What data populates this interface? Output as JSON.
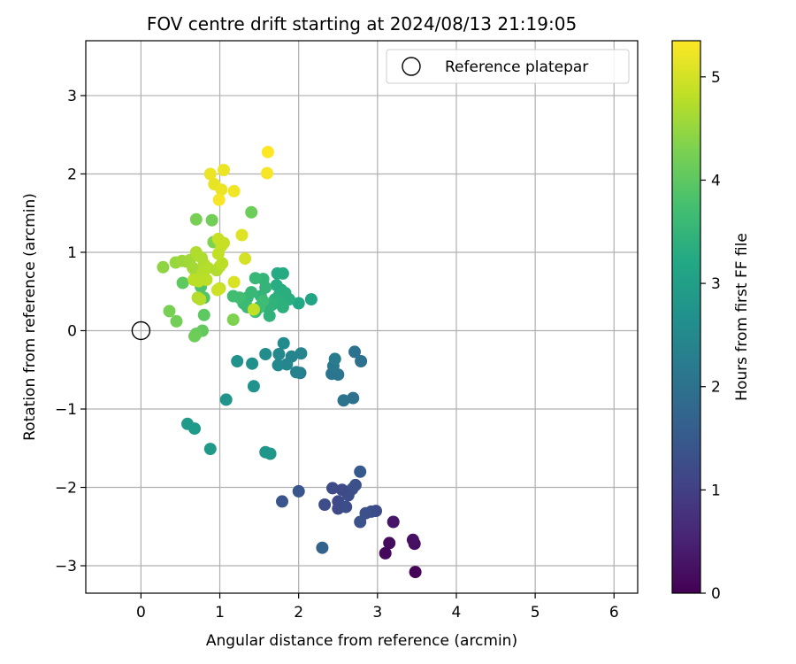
{
  "chart_data": {
    "type": "scatter",
    "title": "FOV centre drift starting at 2024/08/13 21:19:05",
    "xlabel": "Angular distance from reference (arcmin)",
    "ylabel": "Rotation from reference (arcmin)",
    "xlim": [
      -0.7,
      6.3
    ],
    "ylim": [
      -3.35,
      3.7
    ],
    "xticks": [
      0,
      1,
      2,
      3,
      4,
      5,
      6
    ],
    "yticks": [
      -3,
      -2,
      -1,
      0,
      1,
      2,
      3
    ],
    "xtick_labels": [
      "0",
      "1",
      "2",
      "3",
      "4",
      "5",
      "6"
    ],
    "ytick_labels": [
      "−3",
      "−2",
      "−1",
      "0",
      "1",
      "2",
      "3"
    ],
    "grid": true,
    "colormap": "viridis",
    "colorbar": {
      "label": "Hours from first FF file",
      "range": [
        0,
        5.35
      ],
      "ticks": [
        0,
        1,
        2,
        3,
        4,
        5
      ],
      "tick_labels": [
        "0",
        "1",
        "2",
        "3",
        "4",
        "5"
      ]
    },
    "legend": {
      "placement": "top-right",
      "entries": [
        {
          "label": "Reference platepar",
          "marker": "open-circle"
        }
      ]
    },
    "reference_point": {
      "x": 0,
      "y": 0
    },
    "series": [
      {
        "values": [
          {
            "x": 3.48,
            "y": -3.08,
            "c": 0.05
          },
          {
            "x": 3.1,
            "y": -2.84,
            "c": 0.1
          },
          {
            "x": 3.15,
            "y": -2.71,
            "c": 0.15
          },
          {
            "x": 3.47,
            "y": -2.72,
            "c": 0.2
          },
          {
            "x": 3.45,
            "y": -2.67,
            "c": 0.25
          },
          {
            "x": 3.2,
            "y": -2.44,
            "c": 0.3
          },
          {
            "x": 2.98,
            "y": -2.3,
            "c": 1.2
          },
          {
            "x": 2.92,
            "y": -2.31,
            "c": 1.25
          },
          {
            "x": 2.85,
            "y": -2.33,
            "c": 1.3
          },
          {
            "x": 2.78,
            "y": -2.44,
            "c": 1.35
          },
          {
            "x": 2.78,
            "y": -1.8,
            "c": 1.5
          },
          {
            "x": 2.72,
            "y": -1.97,
            "c": 1.3
          },
          {
            "x": 2.68,
            "y": -2.02,
            "c": 1.3
          },
          {
            "x": 2.63,
            "y": -2.1,
            "c": 1.25
          },
          {
            "x": 2.55,
            "y": -2.03,
            "c": 1.2
          },
          {
            "x": 2.43,
            "y": -2.01,
            "c": 1.2
          },
          {
            "x": 2.5,
            "y": -2.18,
            "c": 1.2
          },
          {
            "x": 2.5,
            "y": -2.27,
            "c": 1.2
          },
          {
            "x": 2.6,
            "y": -2.25,
            "c": 1.25
          },
          {
            "x": 2.33,
            "y": -2.22,
            "c": 1.25
          },
          {
            "x": 2.0,
            "y": -2.05,
            "c": 1.4
          },
          {
            "x": 1.79,
            "y": -2.18,
            "c": 1.4
          },
          {
            "x": 2.3,
            "y": -2.77,
            "c": 1.7
          },
          {
            "x": 2.69,
            "y": -0.86,
            "c": 2.0
          },
          {
            "x": 2.57,
            "y": -0.89,
            "c": 2.05
          },
          {
            "x": 2.5,
            "y": -0.56,
            "c": 2.1
          },
          {
            "x": 2.42,
            "y": -0.55,
            "c": 2.1
          },
          {
            "x": 2.44,
            "y": -0.45,
            "c": 2.15
          },
          {
            "x": 2.46,
            "y": -0.36,
            "c": 2.2
          },
          {
            "x": 2.71,
            "y": -0.27,
            "c": 2.0
          },
          {
            "x": 2.79,
            "y": -0.39,
            "c": 2.0
          },
          {
            "x": 2.02,
            "y": -0.54,
            "c": 2.3
          },
          {
            "x": 1.97,
            "y": -0.53,
            "c": 2.35
          },
          {
            "x": 2.03,
            "y": -0.29,
            "c": 2.4
          },
          {
            "x": 1.91,
            "y": -0.33,
            "c": 2.4
          },
          {
            "x": 1.85,
            "y": -0.43,
            "c": 2.45
          },
          {
            "x": 1.74,
            "y": -0.44,
            "c": 2.5
          },
          {
            "x": 1.75,
            "y": -0.3,
            "c": 2.5
          },
          {
            "x": 1.81,
            "y": -0.16,
            "c": 2.55
          },
          {
            "x": 1.58,
            "y": -0.3,
            "c": 2.6
          },
          {
            "x": 1.41,
            "y": -0.42,
            "c": 2.65
          },
          {
            "x": 1.43,
            "y": -0.71,
            "c": 2.7
          },
          {
            "x": 1.22,
            "y": -0.39,
            "c": 2.7
          },
          {
            "x": 1.08,
            "y": -0.88,
            "c": 2.75
          },
          {
            "x": 1.58,
            "y": -1.55,
            "c": 2.8
          },
          {
            "x": 1.64,
            "y": -1.57,
            "c": 2.8
          },
          {
            "x": 0.88,
            "y": -1.51,
            "c": 2.85
          },
          {
            "x": 0.59,
            "y": -1.19,
            "c": 2.9
          },
          {
            "x": 0.68,
            "y": -1.25,
            "c": 2.9
          },
          {
            "x": 2.16,
            "y": 0.4,
            "c": 3.15
          },
          {
            "x": 2.0,
            "y": 0.35,
            "c": 3.2
          },
          {
            "x": 1.8,
            "y": 0.73,
            "c": 3.25
          },
          {
            "x": 1.73,
            "y": 0.73,
            "c": 3.25
          },
          {
            "x": 1.72,
            "y": 0.58,
            "c": 3.3
          },
          {
            "x": 1.78,
            "y": 0.52,
            "c": 3.3
          },
          {
            "x": 1.83,
            "y": 0.48,
            "c": 3.35
          },
          {
            "x": 1.88,
            "y": 0.4,
            "c": 3.35
          },
          {
            "x": 1.75,
            "y": 0.45,
            "c": 3.35
          },
          {
            "x": 1.76,
            "y": 0.36,
            "c": 3.4
          },
          {
            "x": 1.8,
            "y": 0.3,
            "c": 3.4
          },
          {
            "x": 1.7,
            "y": 0.4,
            "c": 3.4
          },
          {
            "x": 1.66,
            "y": 0.33,
            "c": 3.45
          },
          {
            "x": 1.63,
            "y": 0.19,
            "c": 3.45
          },
          {
            "x": 1.6,
            "y": 0.3,
            "c": 3.45
          },
          {
            "x": 1.55,
            "y": 0.66,
            "c": 3.5
          },
          {
            "x": 1.58,
            "y": 0.55,
            "c": 3.5
          },
          {
            "x": 1.52,
            "y": 0.44,
            "c": 3.5
          },
          {
            "x": 1.45,
            "y": 0.67,
            "c": 3.55
          },
          {
            "x": 1.4,
            "y": 0.49,
            "c": 3.55
          },
          {
            "x": 1.35,
            "y": 0.42,
            "c": 3.55
          },
          {
            "x": 1.3,
            "y": 0.35,
            "c": 3.6
          },
          {
            "x": 1.35,
            "y": 0.3,
            "c": 3.6
          },
          {
            "x": 1.48,
            "y": 0.28,
            "c": 3.6
          },
          {
            "x": 1.45,
            "y": 0.24,
            "c": 3.65
          },
          {
            "x": 1.5,
            "y": 0.3,
            "c": 3.65
          },
          {
            "x": 1.55,
            "y": 0.38,
            "c": 3.65
          },
          {
            "x": 1.25,
            "y": 0.42,
            "c": 3.7
          },
          {
            "x": 1.17,
            "y": 0.44,
            "c": 3.7
          },
          {
            "x": 1.4,
            "y": 1.51,
            "c": 4.15
          },
          {
            "x": 0.9,
            "y": 1.41,
            "c": 4.2
          },
          {
            "x": 0.7,
            "y": 1.42,
            "c": 4.25
          },
          {
            "x": 0.76,
            "y": 0.56,
            "c": 3.85
          },
          {
            "x": 0.8,
            "y": 0.42,
            "c": 3.9
          },
          {
            "x": 0.8,
            "y": 0.2,
            "c": 4.0
          },
          {
            "x": 0.53,
            "y": 0.61,
            "c": 4.0
          },
          {
            "x": 0.78,
            "y": 0.0,
            "c": 4.05
          },
          {
            "x": 0.7,
            "y": -0.04,
            "c": 4.1
          },
          {
            "x": 0.68,
            "y": -0.07,
            "c": 4.15
          },
          {
            "x": 0.45,
            "y": 0.12,
            "c": 4.2
          },
          {
            "x": 0.36,
            "y": 0.25,
            "c": 4.25
          },
          {
            "x": 1.17,
            "y": 0.14,
            "c": 4.3
          },
          {
            "x": 0.92,
            "y": 1.13,
            "c": 4.3
          },
          {
            "x": 0.28,
            "y": 0.81,
            "c": 4.45
          },
          {
            "x": 0.44,
            "y": 0.87,
            "c": 4.5
          },
          {
            "x": 0.52,
            "y": 0.89,
            "c": 4.55
          },
          {
            "x": 0.58,
            "y": 0.88,
            "c": 4.55
          },
          {
            "x": 0.62,
            "y": 0.9,
            "c": 4.6
          },
          {
            "x": 0.66,
            "y": 0.8,
            "c": 4.6
          },
          {
            "x": 0.7,
            "y": 0.72,
            "c": 4.6
          },
          {
            "x": 0.72,
            "y": 0.96,
            "c": 4.65
          },
          {
            "x": 0.7,
            "y": 1.0,
            "c": 4.7
          },
          {
            "x": 0.77,
            "y": 0.93,
            "c": 4.7
          },
          {
            "x": 0.8,
            "y": 0.85,
            "c": 4.7
          },
          {
            "x": 0.85,
            "y": 0.8,
            "c": 4.75
          },
          {
            "x": 0.78,
            "y": 0.73,
            "c": 4.75
          },
          {
            "x": 0.83,
            "y": 0.65,
            "c": 4.8
          },
          {
            "x": 0.73,
            "y": 0.63,
            "c": 4.8
          },
          {
            "x": 0.67,
            "y": 0.65,
            "c": 4.8
          },
          {
            "x": 0.96,
            "y": 0.77,
            "c": 4.7
          },
          {
            "x": 1.0,
            "y": 0.82,
            "c": 4.75
          },
          {
            "x": 1.03,
            "y": 0.86,
            "c": 4.8
          },
          {
            "x": 0.98,
            "y": 0.98,
            "c": 4.85
          },
          {
            "x": 1.02,
            "y": 1.08,
            "c": 4.85
          },
          {
            "x": 1.05,
            "y": 1.12,
            "c": 4.9
          },
          {
            "x": 0.98,
            "y": 1.17,
            "c": 4.9
          },
          {
            "x": 0.72,
            "y": 0.42,
            "c": 4.7
          },
          {
            "x": 0.75,
            "y": 0.4,
            "c": 4.75
          },
          {
            "x": 1.0,
            "y": 0.54,
            "c": 4.9
          },
          {
            "x": 0.97,
            "y": 0.52,
            "c": 4.95
          },
          {
            "x": 1.32,
            "y": 0.92,
            "c": 5.0
          },
          {
            "x": 1.18,
            "y": 0.62,
            "c": 5.05
          },
          {
            "x": 1.28,
            "y": 1.22,
            "c": 5.1
          },
          {
            "x": 1.43,
            "y": 0.27,
            "c": 4.85
          },
          {
            "x": 0.88,
            "y": 2.0,
            "c": 5.2
          },
          {
            "x": 1.05,
            "y": 2.05,
            "c": 5.2
          },
          {
            "x": 0.93,
            "y": 1.87,
            "c": 5.15
          },
          {
            "x": 1.02,
            "y": 1.8,
            "c": 5.2
          },
          {
            "x": 1.18,
            "y": 1.78,
            "c": 5.25
          },
          {
            "x": 0.99,
            "y": 1.67,
            "c": 5.3
          },
          {
            "x": 1.6,
            "y": 2.01,
            "c": 5.3
          },
          {
            "x": 1.61,
            "y": 2.28,
            "c": 5.35
          }
        ]
      }
    ]
  }
}
